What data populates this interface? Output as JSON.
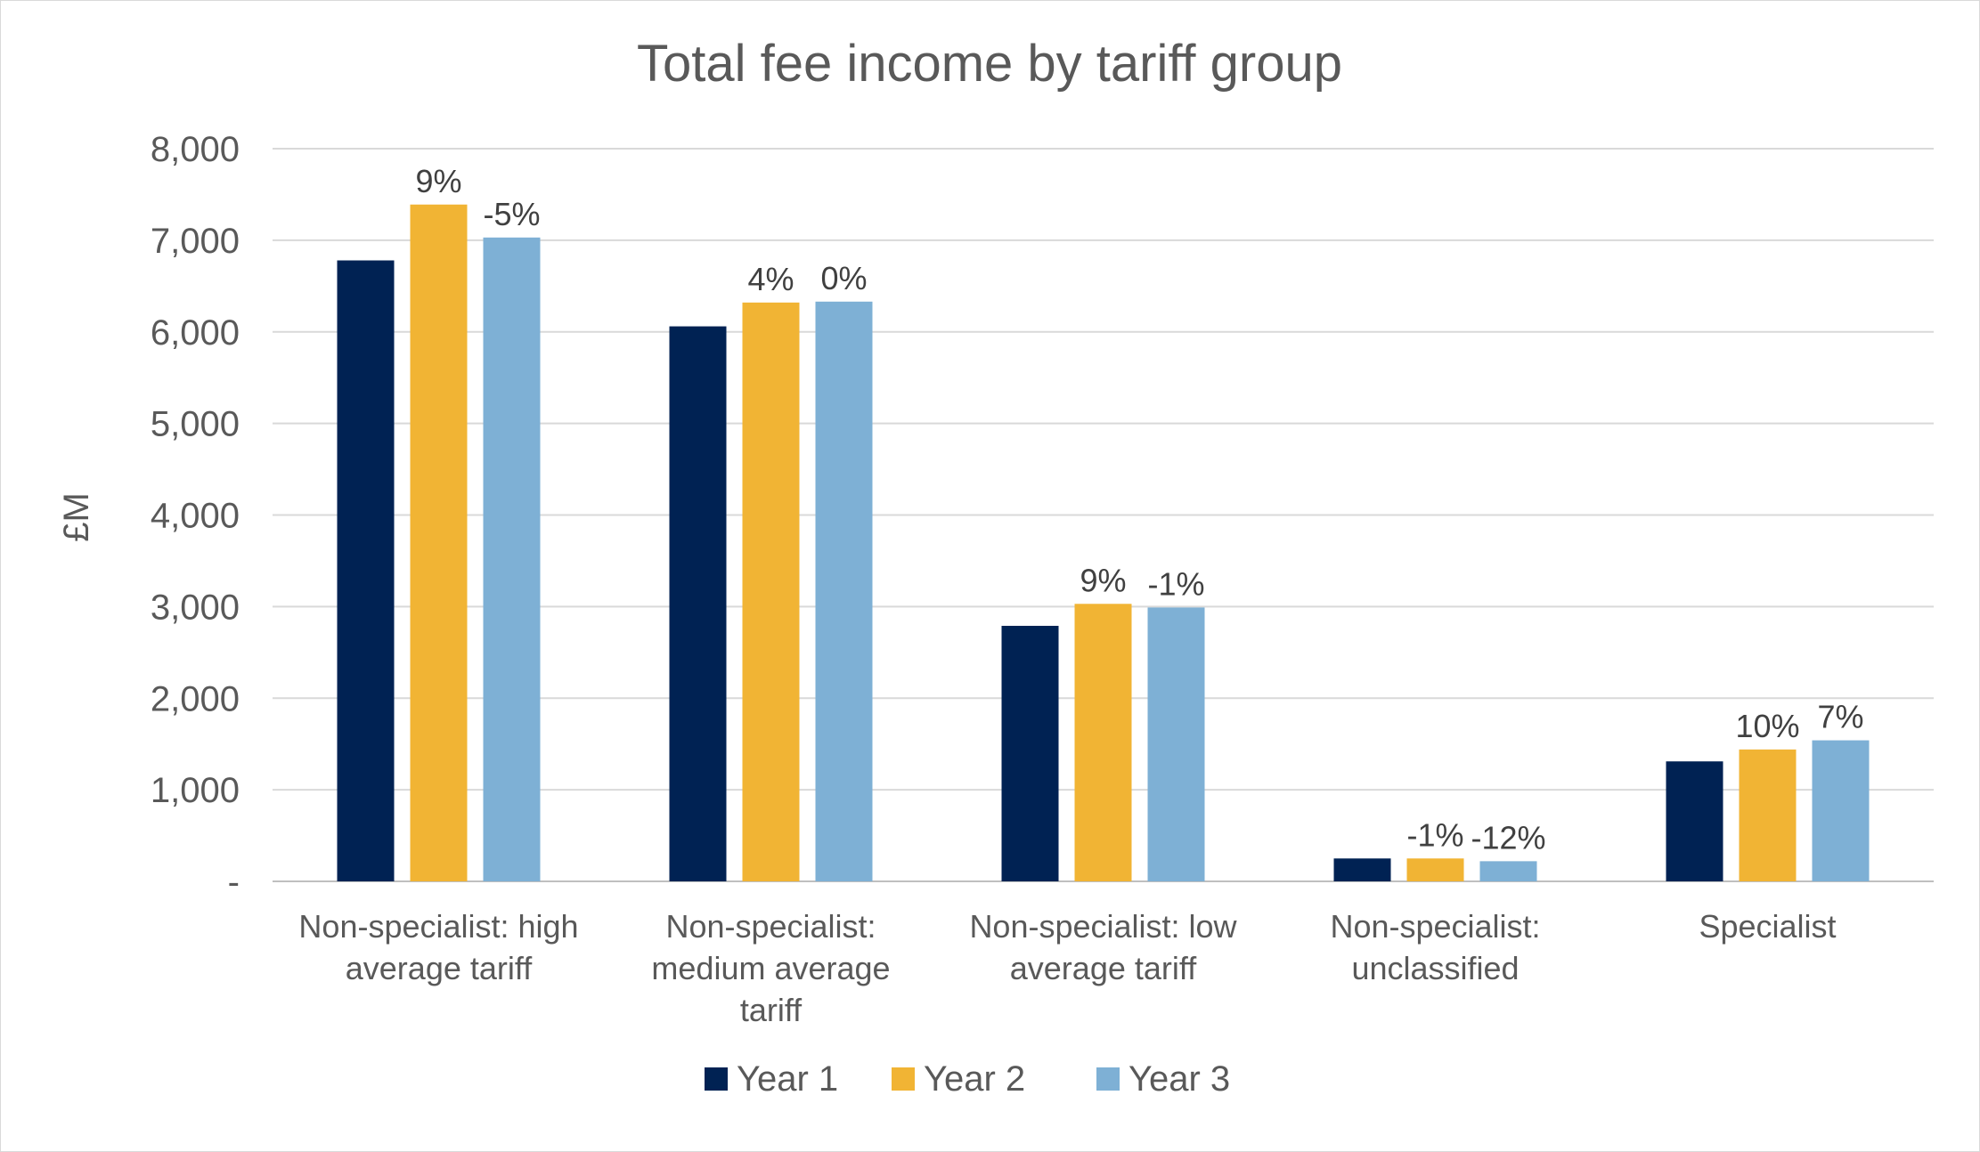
{
  "chart_data": {
    "type": "bar",
    "title": "Total fee income by tariff group",
    "xlabel": "",
    "ylabel": "£M",
    "ylim": [
      0,
      8000
    ],
    "yticks": [
      0,
      1000,
      2000,
      3000,
      4000,
      5000,
      6000,
      7000,
      8000
    ],
    "ytick_labels": [
      "-",
      "1,000",
      "2,000",
      "3,000",
      "4,000",
      "5,000",
      "6,000",
      "7,000",
      "8,000"
    ],
    "grid": true,
    "legend_position": "bottom",
    "categories": [
      {
        "lines": [
          "Non-specialist: high",
          "average tariff"
        ]
      },
      {
        "lines": [
          "Non-specialist:",
          "medium average",
          "tariff"
        ]
      },
      {
        "lines": [
          "Non-specialist: low",
          "average tariff"
        ]
      },
      {
        "lines": [
          "Non-specialist:",
          "unclassified"
        ]
      },
      {
        "lines": [
          "Specialist"
        ]
      }
    ],
    "series": [
      {
        "name": "Year 1",
        "color": "#002253",
        "values": [
          6780,
          6060,
          2790,
          250,
          1310
        ],
        "labels": [
          "",
          "",
          "",
          "",
          ""
        ]
      },
      {
        "name": "Year 2",
        "color": "#f1b434",
        "values": [
          7390,
          6320,
          3030,
          250,
          1440
        ],
        "labels": [
          "9%",
          "4%",
          "9%",
          "-1%",
          "10%"
        ]
      },
      {
        "name": "Year 3",
        "color": "#7eb0d5",
        "values": [
          7030,
          6330,
          2990,
          220,
          1540
        ],
        "labels": [
          "-5%",
          "0%",
          "-1%",
          "-12%",
          "7%"
        ]
      }
    ],
    "gridline_color": "#d9d9d9",
    "axis_color": "#bfbfbf"
  }
}
